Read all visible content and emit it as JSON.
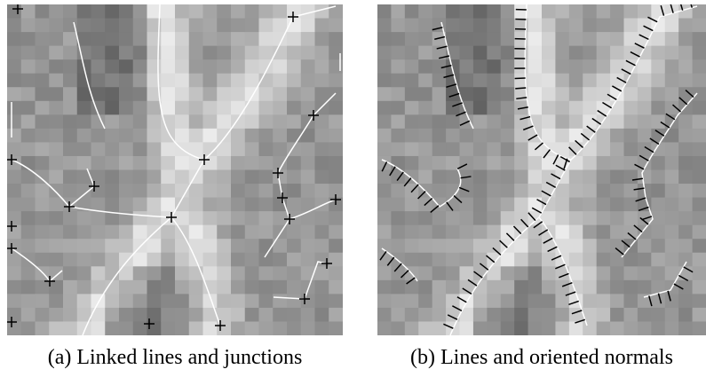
{
  "figure": {
    "panels": [
      {
        "caption": "(a) Linked lines and junctions"
      },
      {
        "caption": "(b) Lines and oriented normals"
      }
    ]
  }
}
